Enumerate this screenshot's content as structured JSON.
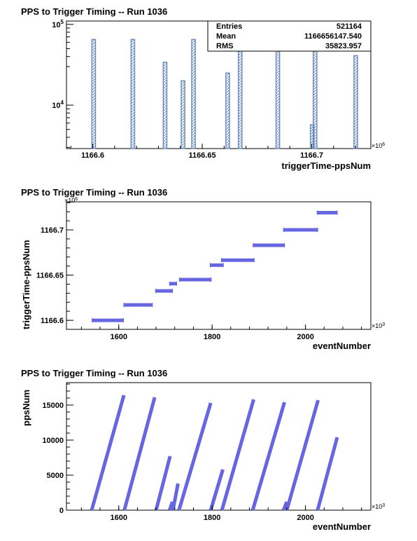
{
  "chart_data": [
    {
      "type": "bar",
      "title": "PPS to Trigger Timing -- Run 1036",
      "xlabel": "triggerTime-ppsNum",
      "ylabel": "",
      "x_unit_label": "×10",
      "x_unit_exp": "6",
      "y_scale": "log",
      "xlim": [
        1166.588,
        1166.727
      ],
      "ylim": [
        2900,
        110000
      ],
      "x_ticks": [
        1166.6,
        1166.65,
        1166.7
      ],
      "x_tick_labels": [
        "1166.6",
        "1166.65",
        "1166.7"
      ],
      "y_ticks": [
        10000,
        100000
      ],
      "y_tick_base": "10",
      "y_tick_exps": [
        "4",
        "5"
      ],
      "bin_width": 0.00165,
      "bins": [
        {
          "x": 1166.5996,
          "count": 65000
        },
        {
          "x": 1166.6175,
          "count": 65000
        },
        {
          "x": 1166.6322,
          "count": 34000
        },
        {
          "x": 1166.6404,
          "count": 20000
        },
        {
          "x": 1166.6452,
          "count": 65000
        },
        {
          "x": 1166.6608,
          "count": 25000
        },
        {
          "x": 1166.6665,
          "count": 65000
        },
        {
          "x": 1166.6837,
          "count": 65000
        },
        {
          "x": 1166.6994,
          "count": 5700
        },
        {
          "x": 1166.7007,
          "count": 65000
        },
        {
          "x": 1166.7193,
          "count": 41000
        }
      ],
      "stats": {
        "rows": [
          {
            "label": "Entries",
            "value": "521164"
          },
          {
            "label": "Mean",
            "value": "1166656147.540"
          },
          {
            "label": "RMS",
            "value": "35823.957"
          }
        ]
      },
      "colors": {
        "line": "#6688bb",
        "hatch": "#6688bb"
      }
    },
    {
      "type": "scatter",
      "title": "PPS to Trigger Timing -- Run 1036",
      "xlabel": "eventNumber",
      "ylabel": "triggerTime-ppsNum",
      "x_unit_label": "×10",
      "x_unit_exp": "3",
      "y_unit_label": "×10",
      "y_unit_exp": "6",
      "xlim": [
        1488,
        2140
      ],
      "ylim": [
        1166.59,
        1166.731
      ],
      "x_ticks": [
        1600,
        1800,
        2000
      ],
      "x_tick_labels": [
        "1600",
        "1800",
        "2000"
      ],
      "y_ticks": [
        1166.6,
        1166.65,
        1166.7
      ],
      "y_tick_labels": [
        "1166.6",
        "1166.65",
        "1166.7"
      ],
      "segments": [
        {
          "x0": 1543,
          "x1": 1610,
          "y": 1166.6
        },
        {
          "x0": 1611,
          "x1": 1672,
          "y": 1166.617
        },
        {
          "x0": 1679,
          "x1": 1715,
          "y": 1166.6325
        },
        {
          "x0": 1709,
          "x1": 1724,
          "y": 1166.6405
        },
        {
          "x0": 1730,
          "x1": 1798,
          "y": 1166.645
        },
        {
          "x0": 1796,
          "x1": 1824,
          "y": 1166.661
        },
        {
          "x0": 1820,
          "x1": 1890,
          "y": 1166.6665
        },
        {
          "x0": 1888,
          "x1": 1955,
          "y": 1166.683
        },
        {
          "x0": 1953,
          "x1": 2026,
          "y": 1166.7
        },
        {
          "x0": 2025,
          "x1": 2068,
          "y": 1166.719
        }
      ],
      "colors": {
        "marker": "#6666e0"
      }
    },
    {
      "type": "scatter",
      "title": "PPS to Trigger Timing -- Run 1036",
      "xlabel": "eventNumber",
      "ylabel": "ppsNum",
      "x_unit_label": "×10",
      "x_unit_exp": "3",
      "xlim": [
        1488,
        2140
      ],
      "ylim": [
        0,
        18200
      ],
      "x_ticks": [
        1600,
        1800,
        2000
      ],
      "x_tick_labels": [
        "1600",
        "1800",
        "2000"
      ],
      "y_ticks": [
        0,
        5000,
        10000,
        15000
      ],
      "y_tick_labels": [
        "0",
        "5000",
        "10000",
        "15000"
      ],
      "segments": [
        {
          "x0": 1542,
          "y0": 0,
          "x1": 1611,
          "y1": 16400
        },
        {
          "x0": 1612,
          "y0": 0,
          "x1": 1677,
          "y1": 16100
        },
        {
          "x0": 1680,
          "y0": 0,
          "x1": 1710,
          "y1": 7700
        },
        {
          "x0": 1709,
          "y0": 0,
          "x1": 1715,
          "y1": 1200
        },
        {
          "x0": 1716,
          "y0": 0,
          "x1": 1727,
          "y1": 3800
        },
        {
          "x0": 1729,
          "y0": 0,
          "x1": 1797,
          "y1": 15300
        },
        {
          "x0": 1797,
          "y0": 0,
          "x1": 1823,
          "y1": 5800
        },
        {
          "x0": 1821,
          "y0": 0,
          "x1": 1889,
          "y1": 15800
        },
        {
          "x0": 1887,
          "y0": 0,
          "x1": 1955,
          "y1": 15400
        },
        {
          "x0": 1953,
          "y0": 0,
          "x1": 1960,
          "y1": 1200
        },
        {
          "x0": 1960,
          "y0": 0,
          "x1": 2027,
          "y1": 15700
        },
        {
          "x0": 2026,
          "y0": 0,
          "x1": 2068,
          "y1": 10400
        }
      ],
      "colors": {
        "marker": "#6666e0"
      }
    }
  ]
}
